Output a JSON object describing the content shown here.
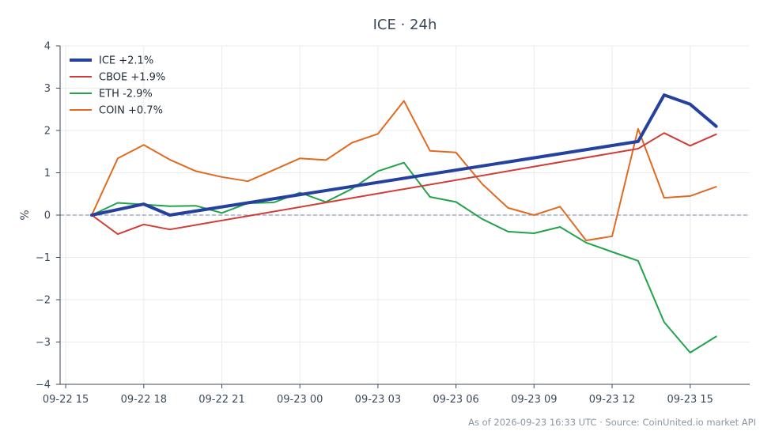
{
  "chart_data": {
    "type": "line",
    "title": "ICE · 24h",
    "xlabel": "",
    "ylabel": "%",
    "x": [
      "09-22 16",
      "09-22 17",
      "09-22 18",
      "09-22 19",
      "09-22 20",
      "09-22 21",
      "09-22 22",
      "09-22 23",
      "09-23 00",
      "09-23 01",
      "09-23 02",
      "09-23 03",
      "09-23 04",
      "09-23 05",
      "09-23 06",
      "09-23 07",
      "09-23 08",
      "09-23 09",
      "09-23 10",
      "09-23 11",
      "09-23 12",
      "09-23 13",
      "09-23 14",
      "09-23 15",
      "09-23 16"
    ],
    "x_ticks": [
      "09-22 15",
      "09-22 18",
      "09-22 21",
      "09-23 00",
      "09-23 03",
      "09-23 06",
      "09-23 09",
      "09-23 12",
      "09-23 15"
    ],
    "ylim": [
      -4,
      4
    ],
    "y_ticks": [
      4,
      3,
      2,
      1,
      0,
      -1,
      -2,
      -3,
      -4
    ],
    "y_tick_labels": [
      "4",
      "3",
      "2",
      "1",
      "0",
      "−1",
      "−2",
      "−3",
      "−4"
    ],
    "grid": true,
    "legend_position": "top-left",
    "series": [
      {
        "name": "ICE +2.1%",
        "color": "#2541a0",
        "values": [
          0.0,
          null,
          0.26,
          0.0,
          null,
          null,
          null,
          null,
          null,
          null,
          null,
          null,
          null,
          null,
          null,
          null,
          null,
          null,
          null,
          null,
          null,
          1.74,
          2.84,
          2.62,
          2.1
        ]
      },
      {
        "name": "CBOE +1.9%",
        "color": "#d33b35",
        "values": [
          0.0,
          -0.45,
          -0.22,
          -0.34,
          null,
          null,
          null,
          null,
          null,
          null,
          null,
          null,
          null,
          null,
          null,
          null,
          null,
          null,
          null,
          null,
          null,
          1.57,
          1.94,
          1.64,
          1.91
        ]
      },
      {
        "name": "ETH -2.9%",
        "color": "#22a24a",
        "values": [
          0.0,
          0.29,
          0.25,
          0.21,
          0.22,
          0.05,
          0.28,
          0.3,
          0.53,
          0.31,
          0.62,
          1.04,
          1.24,
          0.43,
          0.31,
          -0.09,
          -0.39,
          -0.43,
          -0.28,
          -0.65,
          -0.87,
          -1.08,
          -2.53,
          -3.25,
          -2.87
        ]
      },
      {
        "name": "COIN +0.7%",
        "color": "#e06a22",
        "values": [
          0.0,
          1.34,
          1.66,
          1.31,
          1.04,
          0.9,
          0.8,
          1.07,
          1.34,
          1.3,
          1.71,
          1.92,
          2.7,
          1.52,
          1.48,
          0.74,
          0.17,
          0.0,
          0.2,
          -0.6,
          -0.5,
          2.04,
          0.41,
          0.45,
          0.67
        ]
      }
    ],
    "reference_line": {
      "y": 0,
      "style": "dashed",
      "color": "#8e9bbf"
    },
    "footer": "As of 2026-09-23 16:33 UTC · Source: CoinUnited.io market API"
  }
}
